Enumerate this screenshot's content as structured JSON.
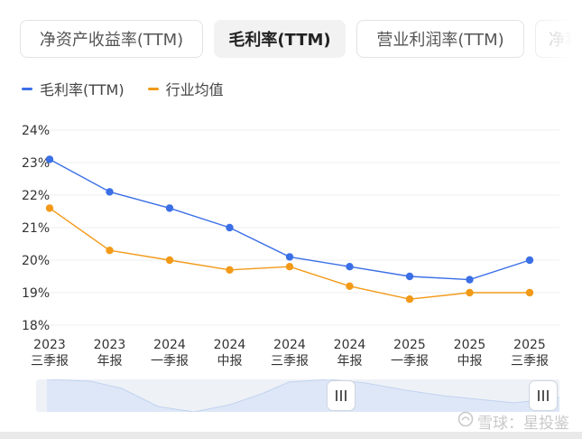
{
  "tabs": [
    {
      "label": "净资产收益率(TTM)"
    },
    {
      "label": "毛利率(TTM)"
    },
    {
      "label": "营业利润率(TTM)"
    },
    {
      "label": "净利"
    }
  ],
  "legend": [
    {
      "label": "毛利率(TTM)"
    },
    {
      "label": "行业均值"
    }
  ],
  "chart_data": {
    "type": "line",
    "title": "",
    "xlabel": "",
    "ylabel": "",
    "ylim": [
      18,
      24
    ],
    "yticks": [
      "24%",
      "23%",
      "22%",
      "21%",
      "20%",
      "19%",
      "18%"
    ],
    "categories": [
      {
        "year": "2023",
        "period": "三季报"
      },
      {
        "year": "2023",
        "period": "年报"
      },
      {
        "year": "2024",
        "period": "一季报"
      },
      {
        "year": "2024",
        "period": "中报"
      },
      {
        "year": "2024",
        "period": "三季报"
      },
      {
        "year": "2024",
        "period": "年报"
      },
      {
        "year": "2025",
        "period": "一季报"
      },
      {
        "year": "2025",
        "period": "中报"
      },
      {
        "year": "2025",
        "period": "三季报"
      }
    ],
    "series": [
      {
        "name": "毛利率(TTM)",
        "color": "#3b6fe6",
        "values": [
          23.1,
          22.1,
          21.6,
          21.0,
          20.1,
          19.8,
          19.5,
          19.4,
          20.0
        ]
      },
      {
        "name": "行业均值",
        "color": "#f29a18",
        "values": [
          21.6,
          20.3,
          20.0,
          19.7,
          19.8,
          19.2,
          18.8,
          19.0,
          19.0
        ]
      }
    ],
    "grid": true,
    "legend": "top-left"
  },
  "watermark": {
    "icon": "snowball-logo-icon",
    "text": "雪球：星投鉴"
  }
}
